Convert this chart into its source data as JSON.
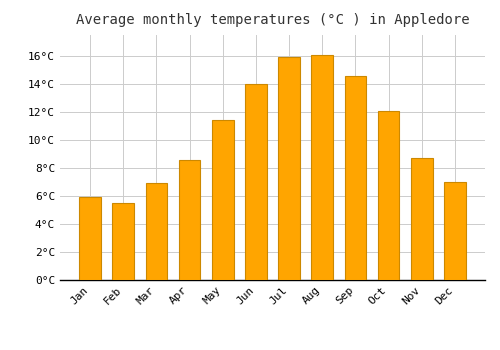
{
  "title": "Average monthly temperatures (°C ) in Appledore",
  "months": [
    "Jan",
    "Feb",
    "Mar",
    "Apr",
    "May",
    "Jun",
    "Jul",
    "Aug",
    "Sep",
    "Oct",
    "Nov",
    "Dec"
  ],
  "temperatures": [
    5.9,
    5.5,
    6.9,
    8.6,
    11.4,
    14.0,
    15.9,
    16.1,
    14.6,
    12.1,
    8.7,
    7.0
  ],
  "bar_color": "#FFA500",
  "bar_edge_color": "#CC8800",
  "ylim": [
    0,
    17.5
  ],
  "yticks": [
    0,
    2,
    4,
    6,
    8,
    10,
    12,
    14,
    16
  ],
  "background_color": "#ffffff",
  "grid_color": "#cccccc",
  "title_fontsize": 10,
  "tick_fontsize": 8,
  "bar_width": 0.65
}
